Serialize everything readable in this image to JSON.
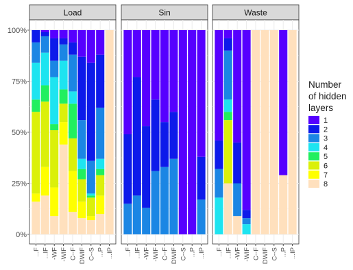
{
  "chart_data": {
    "type": "bar",
    "stacked": true,
    "y_axis": {
      "range": [
        0,
        100
      ],
      "ticks": [
        "0%",
        "25%",
        "50%",
        "75%",
        "100%"
      ]
    },
    "grid": true,
    "legend": {
      "title_lines": [
        "Number",
        "of hidden",
        "layers"
      ],
      "placement": "right",
      "entries": [
        {
          "label": "1",
          "color": "#5600ff"
        },
        {
          "label": "2",
          "color": "#0d1aea"
        },
        {
          "label": "3",
          "color": "#1b86e4"
        },
        {
          "label": "4",
          "color": "#1ee4f0"
        },
        {
          "label": "5",
          "color": "#21ef5f"
        },
        {
          "label": "6",
          "color": "#dbf00a"
        },
        {
          "label": "7",
          "color": "#ffff00"
        },
        {
          "label": "8",
          "color": "#ffe0bd"
        }
      ]
    },
    "panels": [
      {
        "title": "Load",
        "x_tick_labels": [
          "...F",
          "...IF",
          "-WF",
          "-WIF",
          "C--F",
          "DWIF",
          "C--S",
          "...P",
          "...IP"
        ],
        "bars": [
          [
            0,
            6,
            10,
            18,
            6,
            40,
            4,
            16
          ],
          [
            1,
            2,
            8,
            16,
            8,
            32,
            14,
            19
          ],
          [
            4,
            11,
            8,
            23,
            3,
            28,
            14,
            9
          ],
          [
            4,
            3,
            8,
            14,
            7,
            9,
            11,
            44
          ],
          [
            6,
            6,
            18,
            6,
            17,
            16,
            20,
            11
          ],
          [
            13,
            31,
            19,
            5,
            5,
            11,
            8,
            8
          ],
          [
            16,
            48,
            16,
            1,
            1,
            9,
            2,
            7
          ],
          [
            12,
            26,
            25,
            5,
            3,
            10,
            9,
            10
          ],
          [
            0,
            0,
            0,
            0,
            0,
            0,
            0,
            100
          ]
        ]
      },
      {
        "title": "Sin",
        "x_tick_labels": [
          "...F",
          "...IF",
          "-WF",
          "-WIF",
          "C--F",
          "DWIF",
          "C--S",
          "...P",
          "...IP"
        ],
        "bars": [
          [
            51,
            34,
            15,
            0,
            0,
            0,
            0,
            0
          ],
          [
            23,
            58,
            19,
            0,
            0,
            0,
            0,
            0
          ],
          [
            47,
            40,
            13,
            0,
            0,
            0,
            0,
            0
          ],
          [
            34,
            35,
            31,
            0,
            0,
            0,
            0,
            0
          ],
          [
            45,
            22,
            33,
            0,
            0,
            0,
            0,
            0
          ],
          [
            40,
            23,
            37,
            0,
            0,
            0,
            0,
            0
          ],
          [
            100,
            0,
            0,
            0,
            0,
            0,
            0,
            0
          ],
          [
            100,
            0,
            0,
            0,
            0,
            0,
            0,
            0
          ],
          [
            62,
            21,
            17,
            0,
            0,
            0,
            0,
            0
          ]
        ]
      },
      {
        "title": "Waste",
        "x_tick_labels": [
          "...F",
          "...IF",
          "-WF",
          "-WIF",
          "C--F",
          "DWIF",
          "C--S",
          "...P",
          "...IP"
        ],
        "bars": [
          [
            54,
            14,
            14,
            18,
            0,
            0,
            0,
            0
          ],
          [
            4,
            6,
            24,
            6,
            4,
            31,
            0,
            25
          ],
          [
            55,
            20,
            16,
            0,
            0,
            0,
            0,
            9
          ],
          [
            88,
            4,
            3,
            5,
            0,
            0,
            0,
            0
          ],
          [
            0,
            0,
            0,
            0,
            0,
            0,
            0,
            100
          ],
          [
            0,
            0,
            0,
            0,
            0,
            0,
            0,
            100
          ],
          [
            0,
            0,
            0,
            0,
            0,
            0,
            0,
            100
          ],
          [
            71,
            0,
            0,
            0,
            0,
            0,
            0,
            29
          ],
          [
            0,
            0,
            0,
            0,
            0,
            0,
            0,
            100
          ]
        ]
      }
    ]
  }
}
